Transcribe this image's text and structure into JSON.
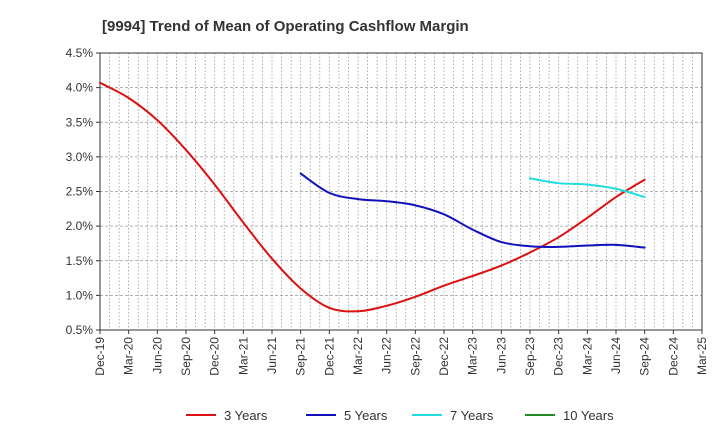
{
  "chart_data": {
    "type": "line",
    "title": "[9994]  Trend of Mean of Operating Cashflow Margin",
    "xlabel": "",
    "ylabel": "",
    "x_ticks": [
      "Dec-19",
      "Mar-20",
      "Jun-20",
      "Sep-20",
      "Dec-20",
      "Mar-21",
      "Jun-21",
      "Sep-21",
      "Dec-21",
      "Mar-22",
      "Jun-22",
      "Sep-22",
      "Dec-22",
      "Mar-23",
      "Jun-23",
      "Sep-23",
      "Dec-23",
      "Mar-24",
      "Jun-24",
      "Sep-24",
      "Dec-24",
      "Mar-25"
    ],
    "y_ticks": [
      "0.5%",
      "1.0%",
      "1.5%",
      "2.0%",
      "2.5%",
      "3.0%",
      "3.5%",
      "4.0%",
      "4.5%"
    ],
    "ylim": [
      0.5,
      4.5
    ],
    "y_unit": "%",
    "grid": true,
    "legend_position": "bottom",
    "series": [
      {
        "name": "3 Years",
        "color": "#dd1111",
        "x": [
          "Dec-19",
          "Mar-20",
          "Jun-20",
          "Sep-20",
          "Dec-20",
          "Mar-21",
          "Jun-21",
          "Sep-21",
          "Dec-21",
          "Mar-22",
          "Jun-22",
          "Sep-22",
          "Dec-22",
          "Mar-23",
          "Jun-23",
          "Sep-23",
          "Dec-23",
          "Mar-24",
          "Jun-24",
          "Sep-24"
        ],
        "values": [
          4.07,
          3.85,
          3.53,
          3.1,
          2.6,
          2.05,
          1.53,
          1.1,
          0.82,
          0.77,
          0.85,
          0.98,
          1.14,
          1.28,
          1.43,
          1.62,
          1.84,
          2.12,
          2.42,
          2.67
        ]
      },
      {
        "name": "5 Years",
        "color": "#1111bb",
        "x": [
          "Sep-21",
          "Dec-21",
          "Mar-22",
          "Jun-22",
          "Sep-22",
          "Dec-22",
          "Mar-23",
          "Jun-23",
          "Sep-23",
          "Dec-23",
          "Mar-24",
          "Jun-24",
          "Sep-24"
        ],
        "values": [
          2.76,
          2.48,
          2.39,
          2.36,
          2.3,
          2.17,
          1.95,
          1.77,
          1.71,
          1.7,
          1.72,
          1.73,
          1.69
        ]
      },
      {
        "name": "7 Years",
        "color": "#22dddd",
        "x": [
          "Sep-23",
          "Dec-23",
          "Mar-24",
          "Jun-24",
          "Sep-24"
        ],
        "values": [
          2.69,
          2.62,
          2.6,
          2.54,
          2.42
        ]
      },
      {
        "name": "10 Years",
        "color": "#228822",
        "x": [],
        "values": []
      }
    ]
  }
}
